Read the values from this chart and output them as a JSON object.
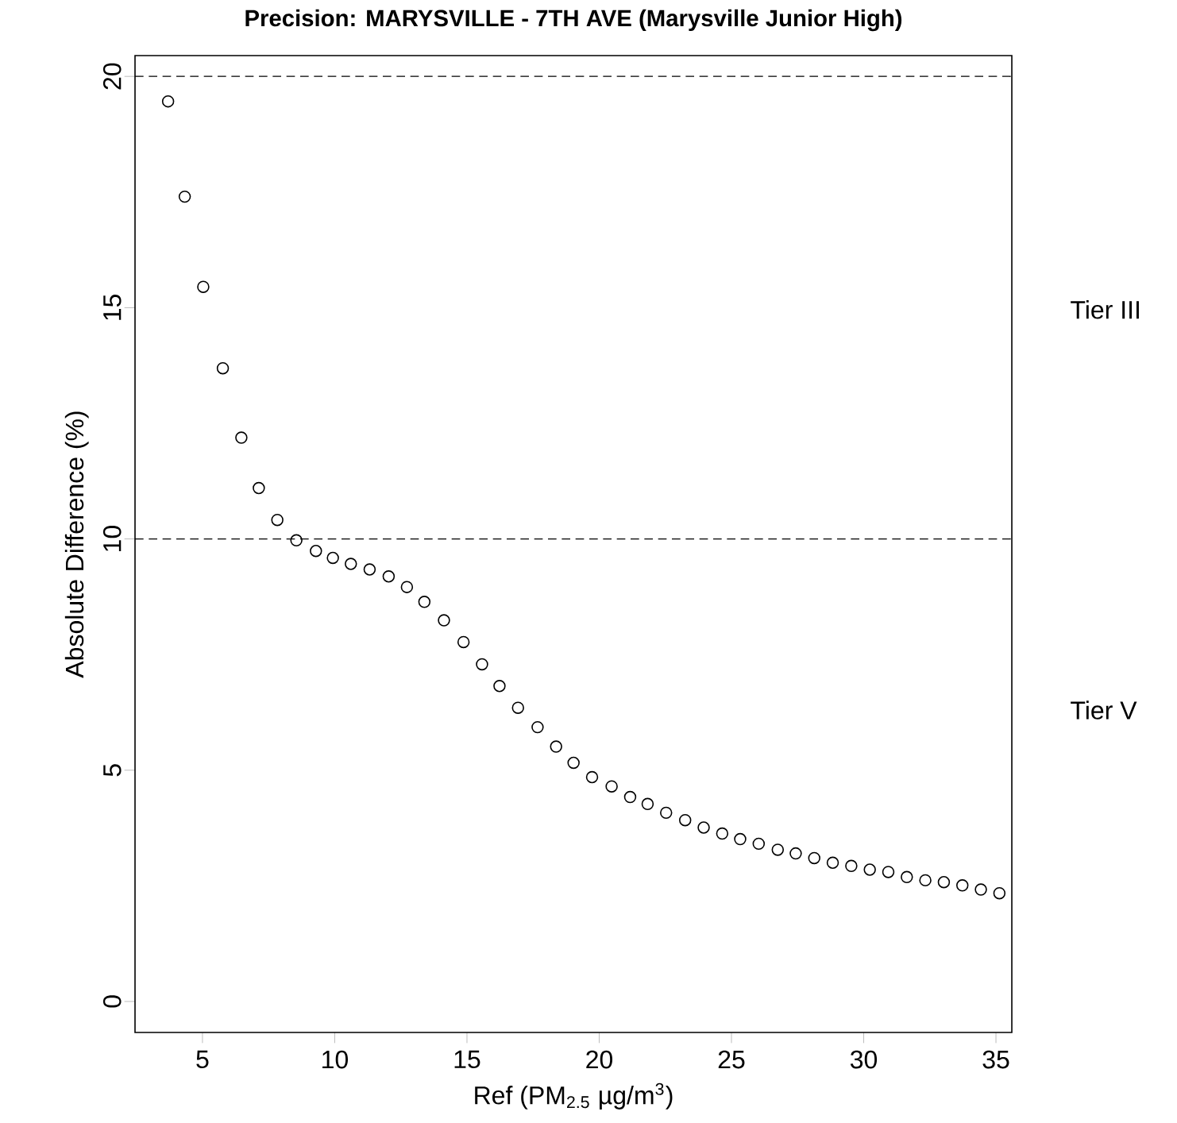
{
  "chart_data": {
    "type": "scatter",
    "title": "Precision: MARYSVILLE - 7TH AVE (Marysville Junior High)",
    "xlabel": "Ref (PM$_{2.5}$ µg/m$^{3}$)",
    "ylabel": "Absolute Difference (%)",
    "x": [
      3.7,
      4.33,
      5.03,
      5.77,
      6.47,
      7.13,
      7.83,
      8.55,
      9.29,
      9.93,
      10.61,
      11.32,
      12.04,
      12.73,
      13.39,
      14.13,
      14.87,
      15.57,
      16.23,
      16.93,
      17.67,
      18.37,
      19.03,
      19.73,
      20.47,
      21.17,
      21.83,
      22.53,
      23.25,
      23.95,
      24.65,
      25.33,
      26.03,
      26.75,
      27.43,
      28.13,
      28.83,
      29.53,
      30.23,
      30.93,
      31.63,
      32.33,
      33.03,
      33.73,
      34.43,
      35.13
    ],
    "values": [
      19.46,
      17.4,
      15.45,
      13.69,
      12.19,
      11.1,
      10.41,
      9.97,
      9.74,
      9.59,
      9.46,
      9.34,
      9.19,
      8.96,
      8.64,
      8.24,
      7.77,
      7.29,
      6.82,
      6.35,
      5.93,
      5.51,
      5.16,
      4.85,
      4.65,
      4.42,
      4.27,
      4.08,
      3.92,
      3.76,
      3.63,
      3.51,
      3.41,
      3.28,
      3.2,
      3.1,
      3.0,
      2.93,
      2.85,
      2.8,
      2.69,
      2.62,
      2.58,
      2.51,
      2.42,
      2.34
    ],
    "color": "#000000",
    "marker": "circle",
    "ref_lines": [
      {
        "axis": "y",
        "value": 10,
        "line_style": "dashed"
      },
      {
        "axis": "y",
        "value": 20,
        "line_style": "dashed"
      }
    ],
    "annotations": [
      "Tier III",
      "Tier V"
    ],
    "xlim": [
      2.45,
      35.6
    ],
    "ylim": [
      -0.67,
      20.45
    ],
    "xticks": [
      5,
      10,
      15,
      20,
      25,
      30,
      35
    ],
    "yticks": [
      0,
      5,
      10,
      15,
      20
    ]
  }
}
